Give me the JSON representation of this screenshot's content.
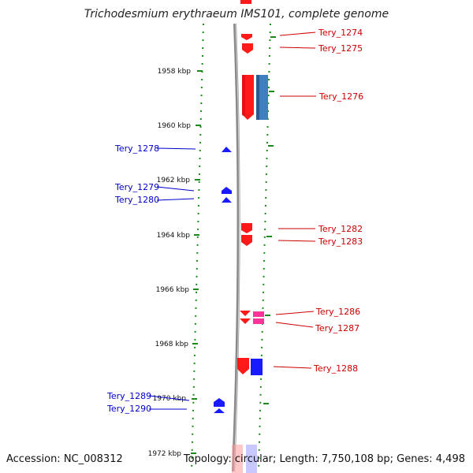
{
  "title": "Trichodesmium erythraeum IMS101, complete genome",
  "footer": {
    "accession": "Accession: NC_008312",
    "topology": "Topology: circular; Length: 7,750,108 bp; Genes: 4,498"
  },
  "colors": {
    "backbone": "#8a8a8a",
    "forward": "#ff1a1a",
    "reverse": "#1a1aff",
    "pink": "#ff3399",
    "steel": "#3f7fbf",
    "tick": "#1a8a1a",
    "forward_label": "#cc0000",
    "reverse_label": "#0000cc"
  },
  "ticks": [
    {
      "label": "1958 kbp"
    },
    {
      "label": "1960 kbp"
    },
    {
      "label": "1962 kbp"
    },
    {
      "label": "1964 kbp"
    },
    {
      "label": "1966 kbp"
    },
    {
      "label": "1968 kbp"
    },
    {
      "label": "1970 kbp"
    },
    {
      "label": "1972 kbp"
    }
  ],
  "genes_forward": [
    {
      "label": "Tery_1274"
    },
    {
      "label": "Tery_1275"
    },
    {
      "label": "Tery_1276"
    },
    {
      "label": "Tery_1282"
    },
    {
      "label": "Tery_1283"
    },
    {
      "label": "Tery_1286"
    },
    {
      "label": "Tery_1287"
    },
    {
      "label": "Tery_1288"
    }
  ],
  "genes_reverse": [
    {
      "label": "Tery_1278"
    },
    {
      "label": "Tery_1279"
    },
    {
      "label": "Tery_1280"
    },
    {
      "label": "Tery_1289"
    },
    {
      "label": "Tery_1290"
    }
  ]
}
